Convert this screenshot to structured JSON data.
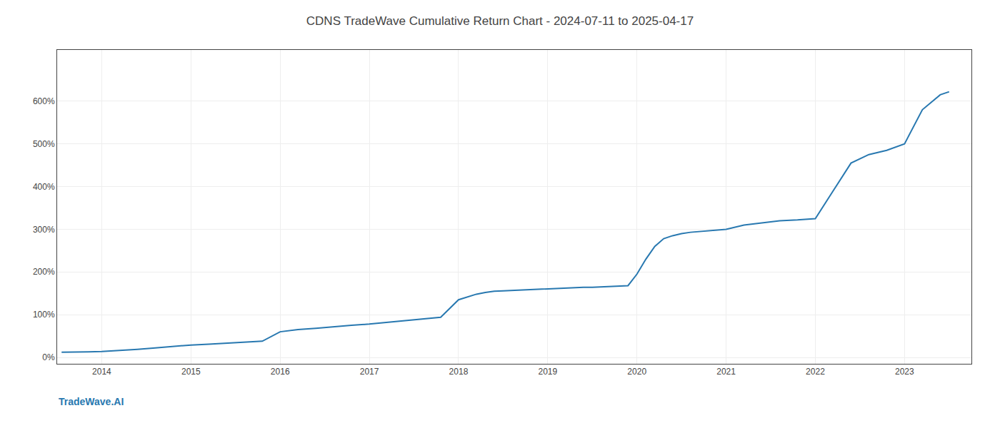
{
  "chart_data": {
    "type": "line",
    "title": "CDNS TradeWave Cumulative Return Chart - 2024-07-11 to 2025-04-17",
    "annotations": [
      {
        "text": "TradeWave.AI",
        "color": "#2878b0"
      }
    ],
    "color": "#2878b0",
    "x": [
      2013.55,
      2013.7,
      2013.85,
      2014.0,
      2014.2,
      2014.4,
      2014.6,
      2014.8,
      2015.0,
      2015.2,
      2015.4,
      2015.6,
      2015.8,
      2016.0,
      2016.2,
      2016.4,
      2016.6,
      2016.8,
      2017.0,
      2017.2,
      2017.4,
      2017.6,
      2017.8,
      2018.0,
      2018.1,
      2018.2,
      2018.3,
      2018.4,
      2018.5,
      2018.6,
      2018.7,
      2018.8,
      2018.9,
      2019.0,
      2019.1,
      2019.2,
      2019.3,
      2019.4,
      2019.5,
      2019.6,
      2019.7,
      2019.8,
      2019.9,
      2020.0,
      2020.1,
      2020.2,
      2020.3,
      2020.4,
      2020.5,
      2020.6,
      2020.7,
      2020.8,
      2020.9,
      2021.0,
      2021.2,
      2021.4,
      2021.6,
      2021.8,
      2022.0,
      2022.2,
      2022.4,
      2022.6,
      2022.8,
      2023.0,
      2023.2,
      2023.4,
      2023.5
    ],
    "values": [
      0.12,
      0.12,
      0.13,
      0.14,
      0.16,
      0.19,
      0.22,
      0.26,
      0.29,
      0.31,
      0.33,
      0.36,
      0.38,
      0.6,
      0.65,
      0.68,
      0.72,
      0.75,
      0.78,
      0.82,
      0.86,
      0.9,
      0.94,
      1.35,
      1.42,
      1.48,
      1.52,
      1.55,
      1.56,
      1.57,
      1.58,
      1.58,
      1.59,
      1.6,
      1.61,
      1.62,
      1.63,
      1.64,
      1.64,
      1.65,
      1.66,
      1.67,
      1.68,
      1.95,
      2.3,
      2.6,
      2.78,
      2.85,
      2.9,
      2.93,
      2.95,
      2.97,
      2.98,
      3.0,
      3.1,
      3.15,
      3.2,
      3.22,
      3.25,
      3.9,
      4.55,
      4.75,
      4.85,
      5.0,
      5.8,
      6.15,
      6.22
    ],
    "xlim": [
      2013.5,
      2023.75
    ],
    "xticks": [
      2014,
      2015,
      2016,
      2017,
      2018,
      2019,
      2020,
      2021,
      2022,
      2023
    ],
    "ylim": [
      -0.15,
      7.2
    ],
    "yticks": [
      {
        "value": 0.0,
        "label": "0%"
      },
      {
        "value": 1.0,
        "label": "100%"
      },
      {
        "value": 2.0,
        "label": "200%"
      },
      {
        "value": 3.0,
        "label": "300%"
      },
      {
        "value": 4.0,
        "label": "400%"
      },
      {
        "value": 5.0,
        "label": "500%"
      },
      {
        "value": 6.0,
        "label": "600%"
      }
    ],
    "grid": true
  }
}
